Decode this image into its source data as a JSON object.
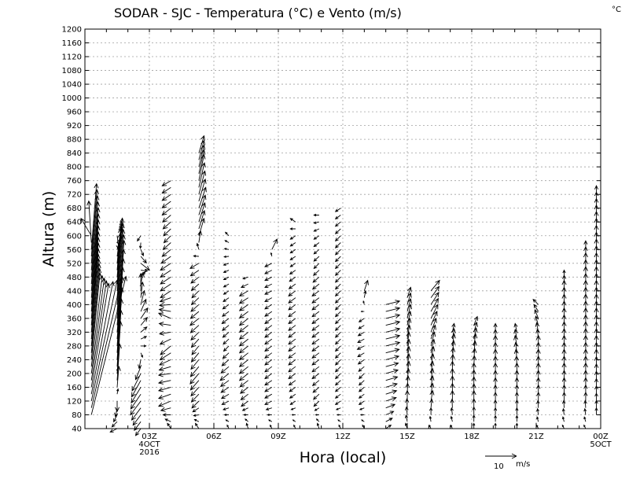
{
  "chart_data": {
    "type": "vector_field",
    "title": "SODAR  -  SJC  -  Temperatura (°C) e Vento (m/s)",
    "corner_unit": "°C",
    "xlabel": "Hora (local)",
    "ylabel": "Altura (m)",
    "ylim": [
      40,
      1200
    ],
    "yticks": [
      40,
      80,
      120,
      160,
      200,
      240,
      280,
      320,
      360,
      400,
      440,
      480,
      520,
      560,
      600,
      640,
      680,
      720,
      760,
      800,
      840,
      880,
      920,
      960,
      1000,
      1040,
      1080,
      1120,
      1160,
      1200
    ],
    "xlim": [
      0,
      24
    ],
    "xticks": [
      {
        "hour": 3,
        "lines": [
          "03Z",
          "4OCT",
          "2016"
        ]
      },
      {
        "hour": 6,
        "lines": [
          "06Z"
        ]
      },
      {
        "hour": 9,
        "lines": [
          "09Z"
        ]
      },
      {
        "hour": 12,
        "lines": [
          "12Z"
        ]
      },
      {
        "hour": 15,
        "lines": [
          "15Z"
        ]
      },
      {
        "hour": 18,
        "lines": [
          "18Z"
        ]
      },
      {
        "hour": 21,
        "lines": [
          "21Z"
        ]
      },
      {
        "hour": 24,
        "lines": [
          "00Z",
          "5OCT"
        ]
      }
    ],
    "reference_vector": {
      "speed": 10,
      "label": "10",
      "unit": "m/s"
    },
    "wind_profiles": [
      {
        "hour": 0.3,
        "profile": [
          [
            80,
            20,
            80
          ],
          [
            160,
            10,
            60
          ],
          [
            240,
            5,
            50
          ],
          [
            320,
            4,
            45
          ],
          [
            400,
            4,
            42
          ],
          [
            480,
            4,
            40
          ],
          [
            560,
            3,
            38
          ],
          [
            600,
            -6,
            10
          ]
        ]
      },
      {
        "hour": 1.5,
        "profile": [
          [
            40,
            -4,
            -2
          ],
          [
            120,
            0,
            -6
          ],
          [
            200,
            2,
            30
          ],
          [
            280,
            3,
            40
          ],
          [
            360,
            4,
            45
          ],
          [
            440,
            3,
            42
          ],
          [
            520,
            2,
            20
          ],
          [
            600,
            1,
            -8
          ]
        ]
      },
      {
        "hour": 2.6,
        "profile": [
          [
            40,
            -3,
            -4
          ],
          [
            120,
            -6,
            -8
          ],
          [
            200,
            -5,
            -10
          ],
          [
            280,
            3,
            0
          ],
          [
            360,
            4,
            6
          ],
          [
            440,
            0,
            10
          ],
          [
            520,
            5,
            -4
          ],
          [
            600,
            -2,
            -3
          ]
        ]
      },
      {
        "hour": 4.0,
        "profile": [
          [
            40,
            -2,
            3
          ],
          [
            120,
            -7,
            -3
          ],
          [
            200,
            -7,
            -1
          ],
          [
            280,
            -6,
            -5
          ],
          [
            360,
            -7,
            3
          ],
          [
            440,
            -6,
            -4
          ],
          [
            520,
            -6,
            -4
          ],
          [
            600,
            -4,
            -4
          ],
          [
            680,
            -5,
            -4
          ],
          [
            760,
            -5,
            -3
          ]
        ]
      },
      {
        "hour": 5.3,
        "profile": [
          [
            40,
            -2,
            3
          ],
          [
            120,
            -4,
            -4
          ],
          [
            200,
            -5,
            -6
          ],
          [
            280,
            -4,
            -5
          ],
          [
            360,
            -5,
            -4
          ],
          [
            440,
            -4,
            -4
          ],
          [
            520,
            -5,
            -3
          ],
          [
            600,
            3,
            10
          ],
          [
            680,
            4,
            12
          ],
          [
            760,
            3,
            15
          ],
          [
            840,
            3,
            10
          ]
        ]
      },
      {
        "hour": 6.7,
        "profile": [
          [
            40,
            -1,
            2
          ],
          [
            120,
            -4,
            -2
          ],
          [
            200,
            -5,
            -4
          ],
          [
            280,
            -3,
            -3
          ],
          [
            360,
            -4,
            -3
          ],
          [
            440,
            -3,
            -2
          ],
          [
            520,
            -3,
            -1
          ],
          [
            600,
            -2,
            2
          ]
        ]
      },
      {
        "hour": 7.6,
        "profile": [
          [
            40,
            -1,
            3
          ],
          [
            120,
            -4,
            -3
          ],
          [
            200,
            -5,
            -4
          ],
          [
            280,
            -5,
            -4
          ],
          [
            360,
            -5,
            -4
          ],
          [
            440,
            -5,
            -3
          ],
          [
            480,
            -3,
            -1
          ]
        ]
      },
      {
        "hour": 8.7,
        "profile": [
          [
            40,
            -1,
            2
          ],
          [
            120,
            -4,
            -2
          ],
          [
            200,
            -4,
            -3
          ],
          [
            280,
            -4,
            -3
          ],
          [
            360,
            -4,
            -3
          ],
          [
            440,
            -4,
            -2
          ],
          [
            520,
            -4,
            -2
          ],
          [
            560,
            3,
            6
          ]
        ]
      },
      {
        "hour": 9.8,
        "profile": [
          [
            40,
            -1,
            2
          ],
          [
            120,
            -3,
            -2
          ],
          [
            200,
            -4,
            -3
          ],
          [
            280,
            -4,
            -3
          ],
          [
            360,
            -4,
            -3
          ],
          [
            440,
            -4,
            -3
          ],
          [
            520,
            -3,
            -2
          ],
          [
            600,
            -3,
            -2
          ],
          [
            640,
            -3,
            2
          ]
        ]
      },
      {
        "hour": 10.9,
        "profile": [
          [
            40,
            -1,
            3
          ],
          [
            120,
            -3,
            -3
          ],
          [
            200,
            -4,
            -3
          ],
          [
            280,
            -4,
            -3
          ],
          [
            360,
            -4,
            -3
          ],
          [
            440,
            -4,
            -3
          ],
          [
            520,
            -3,
            -3
          ],
          [
            600,
            -3,
            -2
          ],
          [
            660,
            -3,
            0
          ]
        ]
      },
      {
        "hour": 11.9,
        "profile": [
          [
            40,
            -1,
            2
          ],
          [
            120,
            -3,
            -2
          ],
          [
            200,
            -3,
            -3
          ],
          [
            280,
            -3,
            -3
          ],
          [
            360,
            -3,
            -3
          ],
          [
            440,
            -3,
            -3
          ],
          [
            520,
            -3,
            -3
          ],
          [
            600,
            -3,
            -3
          ],
          [
            680,
            -3,
            -2
          ]
        ]
      },
      {
        "hour": 13.0,
        "profile": [
          [
            40,
            -1,
            2
          ],
          [
            120,
            -3,
            -2
          ],
          [
            200,
            -3,
            -3
          ],
          [
            280,
            -4,
            -2
          ],
          [
            360,
            -3,
            -2
          ],
          [
            440,
            2,
            6
          ]
        ]
      },
      {
        "hour": 14.0,
        "profile": [
          [
            40,
            3,
            2
          ],
          [
            120,
            6,
            2
          ],
          [
            200,
            7,
            2
          ],
          [
            280,
            8,
            2
          ],
          [
            360,
            8,
            2
          ],
          [
            400,
            8,
            2
          ]
        ]
      },
      {
        "hour": 15.0,
        "profile": [
          [
            40,
            -1,
            3
          ],
          [
            120,
            0,
            6
          ],
          [
            200,
            1,
            7
          ],
          [
            280,
            1,
            8
          ],
          [
            360,
            2,
            8
          ],
          [
            420,
            2,
            6
          ]
        ]
      },
      {
        "hour": 16.1,
        "profile": [
          [
            40,
            -1,
            2
          ],
          [
            120,
            1,
            6
          ],
          [
            200,
            1,
            7
          ],
          [
            280,
            2,
            8
          ],
          [
            360,
            4,
            8
          ],
          [
            440,
            5,
            6
          ]
        ]
      },
      {
        "hour": 17.1,
        "profile": [
          [
            40,
            -1,
            2
          ],
          [
            120,
            0,
            6
          ],
          [
            200,
            0,
            7
          ],
          [
            280,
            1,
            7
          ],
          [
            320,
            1,
            5
          ]
        ]
      },
      {
        "hour": 18.1,
        "profile": [
          [
            40,
            0,
            3
          ],
          [
            120,
            0,
            6
          ],
          [
            200,
            0,
            6
          ],
          [
            280,
            1,
            7
          ],
          [
            340,
            2,
            5
          ]
        ]
      },
      {
        "hour": 19.1,
        "profile": [
          [
            40,
            0,
            3
          ],
          [
            120,
            0,
            5
          ],
          [
            200,
            0,
            6
          ],
          [
            280,
            0,
            6
          ],
          [
            320,
            0,
            5
          ]
        ]
      },
      {
        "hour": 20.1,
        "profile": [
          [
            40,
            0,
            3
          ],
          [
            120,
            0,
            5
          ],
          [
            200,
            0,
            6
          ],
          [
            280,
            -1,
            6
          ],
          [
            320,
            -1,
            5
          ]
        ]
      },
      {
        "hour": 21.1,
        "profile": [
          [
            40,
            -1,
            2
          ],
          [
            120,
            0,
            5
          ],
          [
            200,
            0,
            6
          ],
          [
            280,
            0,
            6
          ],
          [
            360,
            -2,
            5
          ],
          [
            400,
            -3,
            3
          ]
        ]
      },
      {
        "hour": 22.3,
        "profile": [
          [
            40,
            -1,
            2
          ],
          [
            120,
            0,
            5
          ],
          [
            200,
            0,
            6
          ],
          [
            280,
            0,
            6
          ],
          [
            360,
            0,
            6
          ],
          [
            440,
            0,
            6
          ],
          [
            480,
            0,
            4
          ]
        ]
      },
      {
        "hour": 23.3,
        "profile": [
          [
            40,
            -1,
            2
          ],
          [
            120,
            0,
            5
          ],
          [
            200,
            0,
            6
          ],
          [
            280,
            0,
            6
          ],
          [
            360,
            0,
            6
          ],
          [
            440,
            0,
            6
          ],
          [
            520,
            0,
            6
          ],
          [
            560,
            0,
            5
          ]
        ]
      },
      {
        "hour": 23.8,
        "profile": [
          [
            80,
            0,
            4
          ],
          [
            160,
            0,
            5
          ],
          [
            240,
            0,
            6
          ],
          [
            320,
            0,
            6
          ],
          [
            400,
            0,
            6
          ],
          [
            480,
            0,
            6
          ],
          [
            560,
            0,
            6
          ],
          [
            640,
            0,
            6
          ],
          [
            720,
            0,
            5
          ]
        ]
      }
    ]
  }
}
